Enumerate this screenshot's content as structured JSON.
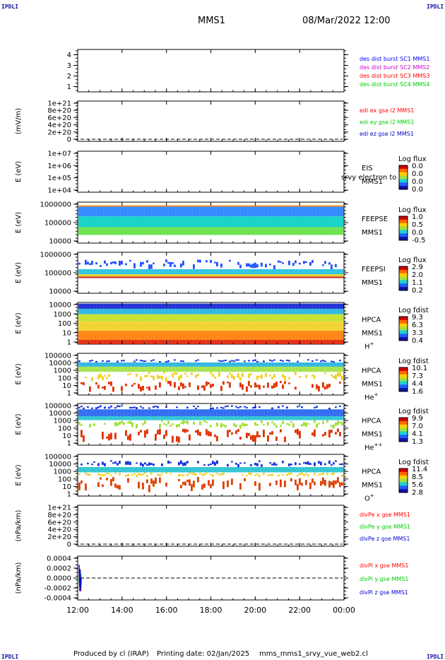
{
  "corner_tag": "IPDLI",
  "header": {
    "satellite": "MMS1",
    "date": "08/Mar/2022 12:00"
  },
  "footer": {
    "produced": "Produced by cl (IRAP)",
    "printing": "Printing date: 02/Jan/2025",
    "file": "mms_mms1_srvy_vue_web2.cl"
  },
  "time_axis": {
    "labels": [
      "12:00",
      "14:00",
      "16:00",
      "18:00",
      "20:00",
      "22:00",
      "00:00"
    ]
  },
  "colors": {
    "mms1": "#0000ff",
    "mms2": "#cc00cc",
    "mms3": "#ff0000",
    "mms4": "#00cc00",
    "x_comp": "#ff0000",
    "y_comp": "#00cc00",
    "z_comp": "#0000cc"
  },
  "chart_data": [
    {
      "type": "line",
      "id": "des-dist-burst",
      "title": "",
      "ylabel": "",
      "yticks": [
        "4",
        "3",
        "2",
        "1"
      ],
      "ylim": [
        0.5,
        4.5
      ],
      "legend": [
        "des dist burst SC1 MMS1",
        "des dist burst SC2 MMS2",
        "des dist burst SC3 MMS3",
        "des dist burst SC4 MMS4"
      ],
      "series": []
    },
    {
      "type": "line",
      "id": "edi-e-gse",
      "ylabel": "(mV/m)",
      "yticks": [
        "1e+21",
        "8e+20",
        "6e+20",
        "4e+20",
        "2e+20",
        "0"
      ],
      "ylim": [
        0,
        1e+21
      ],
      "legend": [
        "edi ex gse l2 MMS1",
        "edi ey gse l2 MMS1",
        "edi ez gse l2 MMS1"
      ],
      "series": [],
      "zero_line": true
    },
    {
      "type": "heatmap",
      "id": "eis",
      "ylabel": "E (eV)",
      "yticks": [
        "1e+07",
        "1e+06",
        "1e+05",
        "1e+04"
      ],
      "ylim": [
        10000,
        10000000
      ],
      "inst": [
        "EIS",
        "MMS1"
      ],
      "overlap_text": "srvy electron to",
      "cb_title": "Log flux",
      "cb_ticks": [
        "0.0",
        "0.0",
        "0.0",
        "0.0"
      ],
      "spectrum": []
    },
    {
      "type": "heatmap",
      "id": "feeps-e",
      "ylabel": "E (eV)",
      "yticks": [
        "1000000",
        "100000",
        "10000"
      ],
      "ylim": [
        10000,
        1000000
      ],
      "inst": [
        "FEEPSE",
        "MMS1"
      ],
      "cb_title": "Log flux",
      "cb_ticks": [
        "1.0",
        "0.5",
        "0.0",
        "-0.5"
      ],
      "spectrum": [
        {
          "band": [
            600000,
            700000
          ],
          "color": "#ff8800"
        },
        {
          "band": [
            200000,
            600000
          ],
          "color": "#2080ff"
        },
        {
          "band": [
            60000,
            200000
          ],
          "color": "#00d0c0"
        },
        {
          "band": [
            25000,
            60000
          ],
          "color": "#60e040"
        }
      ]
    },
    {
      "type": "heatmap",
      "id": "feeps-i",
      "ylabel": "E (eV)",
      "yticks": [
        "1000000",
        "100000",
        "10000"
      ],
      "ylim": [
        10000,
        1000000
      ],
      "inst": [
        "FEEPSI",
        "MMS1"
      ],
      "cb_title": "Log flux",
      "cb_ticks": [
        "2.9",
        "2.0",
        "1.1",
        "0.2"
      ],
      "spectrum": [
        {
          "band": [
            150000,
            450000
          ],
          "color": "#2050ff",
          "sparse": true
        },
        {
          "band": [
            85000,
            150000
          ],
          "color": "#20c0e0"
        },
        {
          "band": [
            65000,
            85000
          ],
          "color": "#e0d020"
        },
        {
          "band": [
            55000,
            65000
          ],
          "color": "#cc1010"
        }
      ]
    },
    {
      "type": "heatmap",
      "id": "hpca-h",
      "ylabel": "E (eV)",
      "yticks": [
        "10000",
        "1000",
        "100",
        "10",
        "1"
      ],
      "ylim": [
        1,
        40000
      ],
      "inst": [
        "HPCA",
        "MMS1",
        "H",
        "+"
      ],
      "cb_title": "Log fdist",
      "cb_ticks": [
        "9.3",
        "6.3",
        "3.3",
        "0.4"
      ],
      "spectrum": [
        {
          "band": [
            8000,
            30000
          ],
          "color": "#1020d0"
        },
        {
          "band": [
            2000,
            8000
          ],
          "color": "#20b0e0"
        },
        {
          "band": [
            300,
            2000
          ],
          "color": "#c0e020"
        },
        {
          "band": [
            30,
            300
          ],
          "color": "#f0d020"
        },
        {
          "band": [
            3,
            30
          ],
          "color": "#ff7a00"
        },
        {
          "band": [
            1,
            3
          ],
          "color": "#e02000"
        }
      ]
    },
    {
      "type": "heatmap",
      "id": "hpca-he",
      "ylabel": "E (eV)",
      "yticks": [
        "100000",
        "10000",
        "1000",
        "100",
        "10",
        "1"
      ],
      "ylim": [
        1,
        100000
      ],
      "inst": [
        "HPCA",
        "MMS1",
        "He",
        "+"
      ],
      "cb_title": "Log fdist",
      "cb_ticks": [
        "10.1",
        "7.3",
        "4.4",
        "1.6"
      ],
      "spectrum": [
        {
          "band": [
            8000,
            20000
          ],
          "color": "#1030e0",
          "sparse": true
        },
        {
          "band": [
            2500,
            8000
          ],
          "color": "#20b0e0"
        },
        {
          "band": [
            600,
            2500
          ],
          "color": "#a0e040"
        },
        {
          "band": [
            50,
            600
          ],
          "color": "#f0d020",
          "sparse": true
        },
        {
          "band": [
            3,
            50
          ],
          "color": "#e03000",
          "sparse": true
        }
      ]
    },
    {
      "type": "heatmap",
      "id": "hpca-he2",
      "ylabel": "E (eV)",
      "yticks": [
        "100000",
        "10000",
        "1000",
        "100",
        "10",
        "1"
      ],
      "ylim": [
        1,
        100000
      ],
      "inst": [
        "HPCA",
        "MMS1",
        "He",
        "++"
      ],
      "cb_title": "Log fdist",
      "cb_ticks": [
        "9.9",
        "7.0",
        "4.1",
        "1.3"
      ],
      "spectrum": [
        {
          "band": [
            20000,
            60000
          ],
          "color": "#1030e0",
          "sparse": true
        },
        {
          "band": [
            3000,
            20000
          ],
          "color": "#2060f0"
        },
        {
          "band": [
            1000,
            3000
          ],
          "color": "#20c0d0"
        },
        {
          "band": [
            100,
            1000
          ],
          "color": "#a0e030",
          "sparse": true
        },
        {
          "band": [
            2,
            100
          ],
          "color": "#e03000",
          "sparse": true
        }
      ]
    },
    {
      "type": "heatmap",
      "id": "hpca-o",
      "ylabel": "E (eV)",
      "yticks": [
        "100000",
        "10000",
        "1000",
        "100",
        "10",
        "1"
      ],
      "ylim": [
        1,
        100000
      ],
      "inst": [
        "HPCA",
        "MMS1",
        "O",
        "+"
      ],
      "cb_title": "Log fdist",
      "cb_ticks": [
        "11.4",
        "8.5",
        "5.6",
        "2.8"
      ],
      "spectrum": [
        {
          "band": [
            3000,
            20000
          ],
          "color": "#1030e0",
          "sparse": true
        },
        {
          "band": [
            700,
            3000
          ],
          "color": "#20c0d0"
        },
        {
          "band": [
            200,
            700
          ],
          "color": "#f0d020",
          "sparse": true
        },
        {
          "band": [
            4,
            200
          ],
          "color": "#e04000",
          "sparse": true
        }
      ]
    },
    {
      "type": "line",
      "id": "dive-pe",
      "ylabel": "(nPa/km)",
      "yticks": [
        "1e+21",
        "8e+20",
        "6e+20",
        "4e+20",
        "2e+20",
        "0"
      ],
      "ylim": [
        0,
        1e+21
      ],
      "legend": [
        "divPe x gse MMS1",
        "divPe y gse MMS1",
        "divPe z gse MMS1"
      ],
      "series": [],
      "zero_line": true
    },
    {
      "type": "line",
      "id": "divpi",
      "ylabel": "(nPa/km)",
      "yticks": [
        "0.0004",
        "0.0002",
        "0.0000",
        "-0.0002",
        "-0.0004"
      ],
      "ylim": [
        -0.0005,
        0.0005
      ],
      "legend": [
        "divPi x gse MMS1",
        "divPi y gse MMS1",
        "divPi z gse MMS1"
      ],
      "zero_line": true,
      "series": [
        {
          "name": "divPi x gse MMS1",
          "x": [
            0,
            0.05,
            0.1,
            0.15,
            0.2
          ],
          "y": [
            0.0002,
            -0.0003,
            0.0001,
            -0.0001,
            0.0
          ]
        },
        {
          "name": "divPi y gse MMS1",
          "x": [
            0,
            0.05,
            0.1,
            0.15,
            0.2
          ],
          "y": [
            -0.0001,
            0.0002,
            -0.0002,
            0.0001,
            0.0
          ]
        },
        {
          "name": "divPi z gse MMS1",
          "x": [
            0,
            0.05,
            0.1,
            0.15,
            0.2
          ],
          "y": [
            0.0003,
            -0.0002,
            0.0002,
            -0.0003,
            0.0
          ]
        }
      ]
    }
  ]
}
